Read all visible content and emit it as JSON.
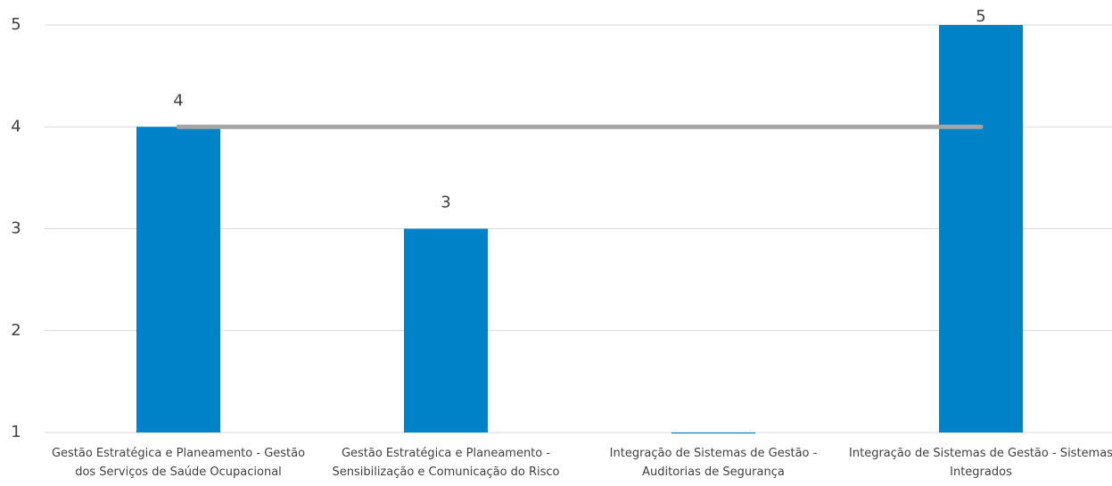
{
  "chart_data": {
    "type": "bar",
    "categories": [
      "Gestão Estratégica e Planeamento - Gestão dos Serviços de Saúde Ocupacional",
      "Gestão Estratégica e Planeamento - Sensibilização e Comunicação do Risco",
      "Integração de Sistemas de Gestão - Auditorias de Segurança",
      "Integração de Sistemas de Gestão - Sistemas Integrados"
    ],
    "series": [
      {
        "type": "bar",
        "color": "#0082c8",
        "values": [
          4,
          3,
          0.99,
          5
        ],
        "value_labels": [
          "4",
          "3",
          null,
          "5"
        ]
      },
      {
        "type": "line",
        "color": "#a5a5a5",
        "values": [
          4,
          4,
          4,
          4
        ]
      }
    ],
    "ylim": [
      1,
      5
    ],
    "yticks": [
      1,
      2,
      3,
      4,
      5
    ],
    "grid": true
  }
}
